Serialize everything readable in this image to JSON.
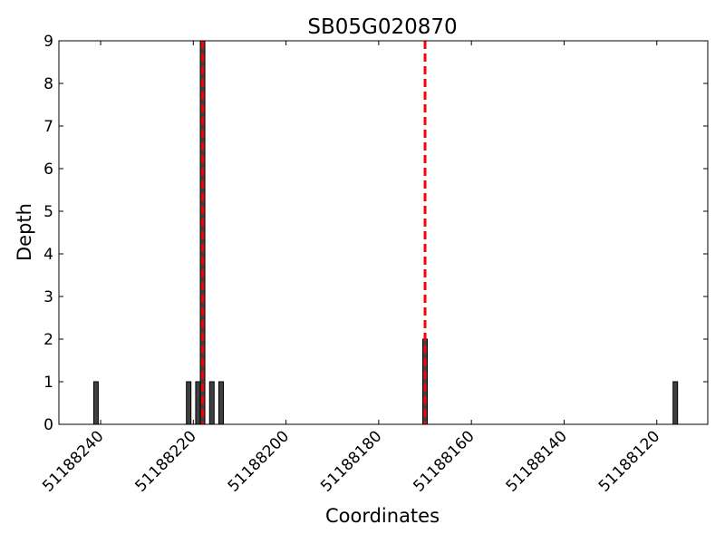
{
  "chart_data": {
    "type": "bar",
    "title": "SB05G020870",
    "xlabel": "Coordinates",
    "ylabel": "Depth",
    "x_reversed": true,
    "xlim": [
      51188249,
      51188109
    ],
    "ylim": [
      0,
      9
    ],
    "xticks": [
      51188240,
      51188220,
      51188200,
      51188180,
      51188160,
      51188140,
      51188120
    ],
    "yticks": [
      0,
      1,
      2,
      3,
      4,
      5,
      6,
      7,
      8,
      9
    ],
    "bar_color": "#404040",
    "bars": [
      {
        "x": 51188241,
        "depth": 1
      },
      {
        "x": 51188221,
        "depth": 1
      },
      {
        "x": 51188219,
        "depth": 1
      },
      {
        "x": 51188218,
        "depth": 9
      },
      {
        "x": 51188216,
        "depth": 1
      },
      {
        "x": 51188214,
        "depth": 1
      },
      {
        "x": 51188170,
        "depth": 2
      },
      {
        "x": 51188116,
        "depth": 1
      }
    ],
    "vlines": [
      {
        "x": 51188218,
        "color": "#ff0000",
        "style": "dashed"
      },
      {
        "x": 51188170,
        "color": "#ff0000",
        "style": "dashed"
      }
    ]
  }
}
